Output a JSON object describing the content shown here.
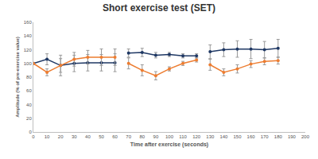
{
  "chart_data": {
    "type": "line",
    "title": "Short exercise test (SET)",
    "x_label": "Time after exercise (seconds)",
    "y_label": "Amplitude (% of pre-exercise value)",
    "x": [
      0,
      10,
      20,
      30,
      40,
      50,
      60,
      null,
      70,
      80,
      90,
      100,
      110,
      120,
      null,
      130,
      140,
      150,
      160,
      170,
      180
    ],
    "series": [
      {
        "color": "#1f3864",
        "marker": "circle",
        "values": [
          100,
          106,
          97,
          100,
          101,
          101,
          101,
          null,
          115,
          116,
          112,
          113,
          111,
          111,
          null,
          117,
          120,
          121,
          121,
          120,
          122
        ],
        "errors": [
          0,
          8,
          15,
          12,
          12,
          12,
          13,
          null,
          6,
          6,
          4,
          3,
          3,
          3,
          null,
          10,
          10,
          12,
          14,
          12,
          13
        ]
      },
      {
        "color": "#ed7d31",
        "marker": "circle",
        "values": [
          100,
          87,
          97,
          106,
          109,
          109,
          109,
          null,
          100,
          90,
          82,
          92,
          100,
          105,
          null,
          98,
          87,
          92,
          99,
          103,
          104
        ],
        "errors": [
          0,
          5,
          10,
          10,
          10,
          12,
          12,
          null,
          8,
          8,
          6,
          3,
          3,
          3,
          null,
          8,
          5,
          6,
          5,
          5,
          5
        ]
      }
    ],
    "xlim": [
      0,
      200
    ],
    "xticks": [
      0,
      10,
      20,
      30,
      40,
      50,
      60,
      70,
      80,
      90,
      100,
      110,
      120,
      130,
      140,
      150,
      160,
      170,
      180,
      190,
      200
    ],
    "ylim": [
      0,
      160
    ],
    "yticks": [
      0,
      20,
      40,
      60,
      80,
      100,
      120,
      140,
      160
    ],
    "grid": false
  }
}
